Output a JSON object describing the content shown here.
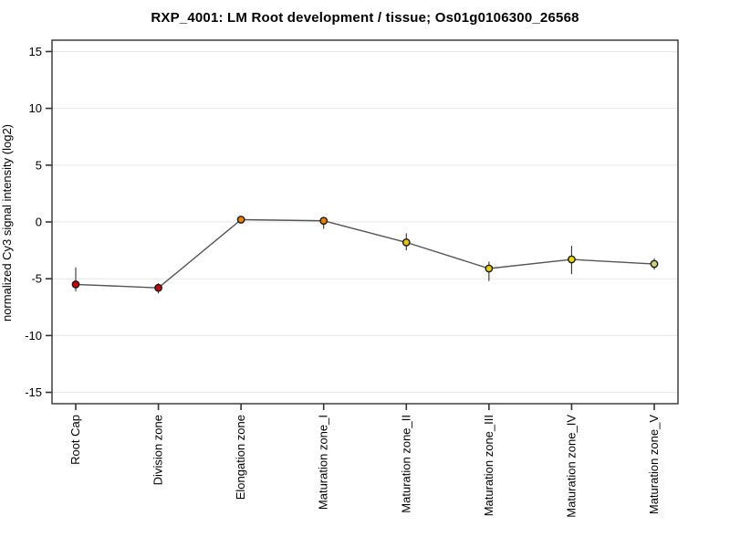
{
  "chart_data": {
    "type": "line",
    "title": "RXP_4001: LM Root development / tissue; Os01g0106300_26568",
    "ylabel": "normalized Cy3 signal intensity (log2)",
    "xlabel": "",
    "ylim": [
      -16,
      16
    ],
    "yticks": [
      15,
      10,
      5,
      0,
      -5,
      -10,
      -15
    ],
    "grid": true,
    "legend_position": "none",
    "categories": [
      "Root Cap",
      "Division zone",
      "Elongation zone",
      "Maturation zone_I",
      "Maturation zone_II",
      "Maturation zone_III",
      "Maturation zone_IV",
      "Maturation zone_V"
    ],
    "values": [
      -5.5,
      -5.8,
      0.2,
      0.1,
      -1.8,
      -4.1,
      -3.3,
      -3.7
    ],
    "error_low": [
      -6.1,
      -6.3,
      0.1,
      -0.6,
      -2.5,
      -5.2,
      -4.6,
      -4.2
    ],
    "error_high": [
      -4.0,
      -5.4,
      0.4,
      0.2,
      -1.0,
      -3.5,
      -2.1,
      -3.2
    ],
    "point_colors": [
      "#cc0000",
      "#cc0000",
      "#e88000",
      "#e88000",
      "#eac200",
      "#e4cf00",
      "#e8da00",
      "#ccd37a"
    ],
    "point_outline_color": "#1a1a1a",
    "line_color": "#555555",
    "error_bar_color": "#333333",
    "grid_color": "#e7e7e7",
    "frame_color": "#4a4a4a",
    "tick_color": "#333333",
    "text_color": "#000000",
    "background_color": "#ffffff"
  }
}
